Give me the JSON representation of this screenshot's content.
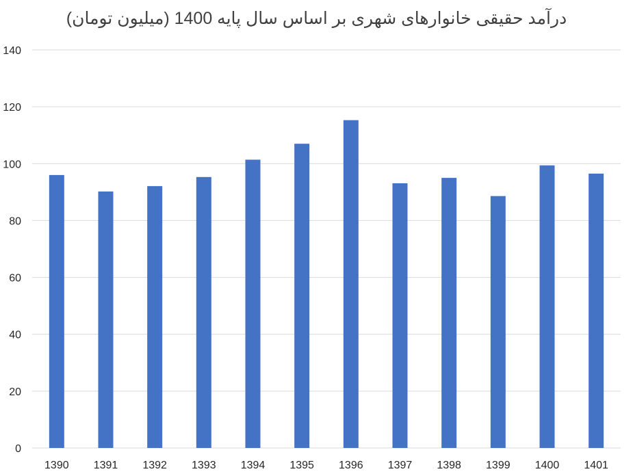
{
  "chart_data": {
    "type": "bar",
    "title": "درآمد حقیقی خانوارهای شهری بر اساس سال پایه 1400 (میلیون تومان)",
    "xlabel": "",
    "ylabel": "",
    "categories": [
      "1390",
      "1391",
      "1392",
      "1393",
      "1394",
      "1395",
      "1396",
      "1397",
      "1398",
      "1399",
      "1400",
      "1401"
    ],
    "values": [
      96,
      90.2,
      92.1,
      95.3,
      101.4,
      107,
      115.3,
      93.1,
      95,
      88.6,
      99.4,
      96.5
    ],
    "ylim": [
      0,
      140
    ],
    "yticks": [
      0,
      20,
      40,
      60,
      80,
      100,
      120,
      140
    ],
    "grid": true,
    "legend": "none",
    "bar_color": "#4472c4"
  }
}
